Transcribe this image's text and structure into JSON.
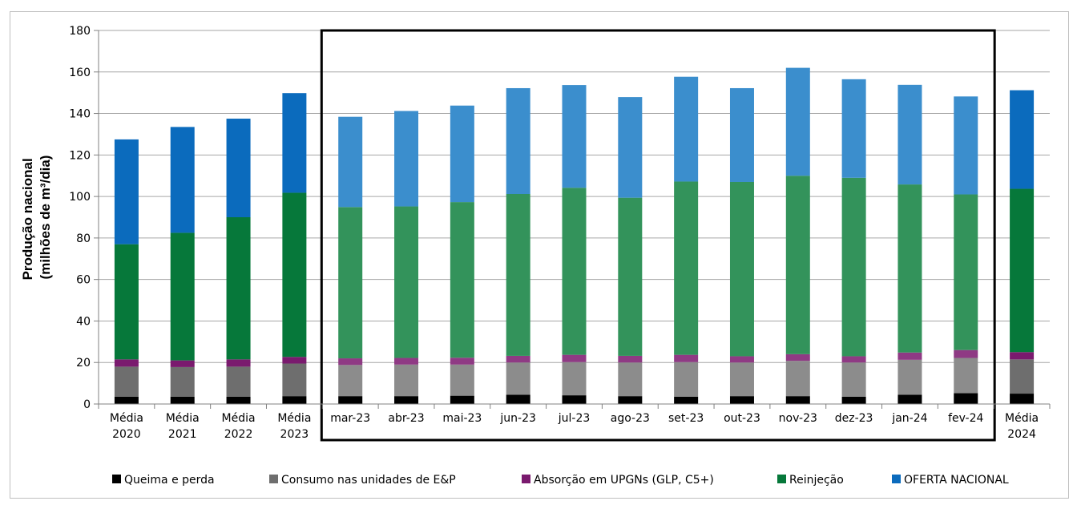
{
  "chart_data": {
    "type": "bar",
    "stacked": true,
    "ylabel_lines": [
      "Produção nacional",
      "(milhões de m³/dia)"
    ],
    "ylim": [
      0,
      180
    ],
    "yticks": [
      0,
      20,
      40,
      60,
      80,
      100,
      120,
      140,
      160,
      180
    ],
    "grid": true,
    "legend_position": "bottom",
    "highlight_box": "monthly bars mar-23 to fev-24",
    "categories": [
      [
        "Média",
        "2020"
      ],
      [
        "Média",
        "2021"
      ],
      [
        "Média",
        "2022"
      ],
      [
        "Média",
        "2023"
      ],
      [
        "mar-23"
      ],
      [
        "abr-23"
      ],
      [
        "mai-23"
      ],
      [
        "jun-23"
      ],
      [
        "jul-23"
      ],
      [
        "ago-23"
      ],
      [
        "set-23"
      ],
      [
        "out-23"
      ],
      [
        "nov-23"
      ],
      [
        "dez-23"
      ],
      [
        "jan-24"
      ],
      [
        "fev-24"
      ],
      [
        "Média",
        "2024"
      ]
    ],
    "series": [
      {
        "name": "Queima e perda",
        "color": "#000000",
        "light_color": "#000000",
        "values": [
          3.5,
          3.5,
          3.5,
          3.8,
          3.8,
          3.8,
          4.0,
          4.5,
          4.2,
          3.8,
          3.5,
          3.8,
          3.8,
          3.5,
          4.5,
          5.2,
          5.0
        ]
      },
      {
        "name": "Consumo nas unidades de E&P",
        "color": "#6e6e6e",
        "light_color": "#8c8c8c",
        "values": [
          14.5,
          14.3,
          14.5,
          15.7,
          15.0,
          15.2,
          15.0,
          15.5,
          16.0,
          16.2,
          16.7,
          16.2,
          17.0,
          16.5,
          16.8,
          17.0,
          16.5
        ]
      },
      {
        "name": "Absorção em UPGNs (GLP, C5+)",
        "color": "#7a1a6e",
        "light_color": "#8f3a84",
        "values": [
          3.5,
          3.2,
          3.5,
          3.2,
          3.2,
          3.2,
          3.3,
          3.2,
          3.5,
          3.2,
          3.5,
          3.0,
          3.2,
          3.0,
          3.5,
          3.8,
          3.5
        ]
      },
      {
        "name": "Reinjeção",
        "color": "#06783a",
        "light_color": "#33935b",
        "values": [
          55.5,
          61.5,
          68.5,
          79.1,
          72.9,
          73.0,
          75.0,
          78.0,
          80.5,
          76.2,
          83.5,
          84.0,
          86.0,
          86.0,
          81.0,
          75.0,
          78.7
        ]
      },
      {
        "name": "OFERTA NACIONAL",
        "color": "#0b6bbd",
        "light_color": "#3b8ecd",
        "values": [
          50.5,
          51.0,
          47.5,
          48.0,
          43.5,
          46.0,
          46.5,
          51.0,
          49.5,
          48.5,
          50.5,
          45.2,
          52.0,
          47.5,
          48.0,
          47.2,
          47.5
        ]
      }
    ]
  }
}
